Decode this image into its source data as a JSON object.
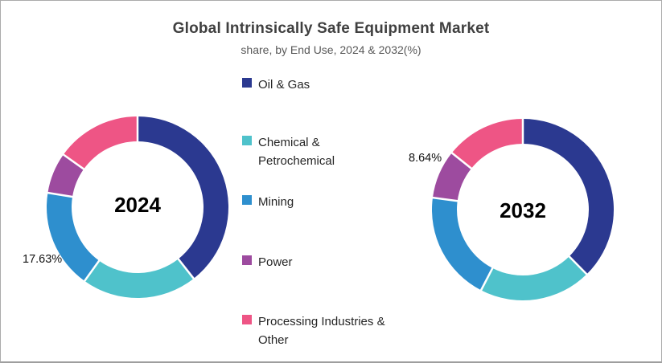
{
  "header": {
    "title": "Global Intrinsically Safe Equipment Market",
    "subtitle": "share, by End Use, 2024 & 2032(%)"
  },
  "legend": {
    "position": "center-between-charts",
    "items": [
      {
        "label": "Oil & Gas",
        "color": "#2b3990"
      },
      {
        "label": "Chemical & Petrochemical",
        "color": "#4fc2cb"
      },
      {
        "label": "Mining",
        "color": "#2e8fce"
      },
      {
        "label": "Power",
        "color": "#9d4b9f"
      },
      {
        "label": "Processing Industries & Other",
        "color": "#ee5585"
      }
    ]
  },
  "chart_data": [
    {
      "type": "pie",
      "subtype": "donut",
      "center_label": "2024",
      "categories": [
        "Oil & Gas",
        "Chemical & Petrochemical",
        "Mining",
        "Power",
        "Processing Industries & Other"
      ],
      "values": [
        39.4,
        20.5,
        17.63,
        7.3,
        15.17
      ],
      "colors": [
        "#2b3990",
        "#4fc2cb",
        "#2e8fce",
        "#9d4b9f",
        "#ee5585"
      ],
      "start_angle_deg": 0,
      "direction": "clockwise",
      "callout": {
        "text": "17.63%",
        "category": "Mining"
      }
    },
    {
      "type": "pie",
      "subtype": "donut",
      "center_label": "2032",
      "categories": [
        "Oil & Gas",
        "Chemical & Petrochemical",
        "Mining",
        "Power",
        "Processing Industries & Other"
      ],
      "values": [
        37.6,
        20.0,
        19.5,
        8.64,
        14.26
      ],
      "colors": [
        "#2b3990",
        "#4fc2cb",
        "#2e8fce",
        "#9d4b9f",
        "#ee5585"
      ],
      "start_angle_deg": 0,
      "direction": "clockwise",
      "callout": {
        "text": "8.64%",
        "category": "Power"
      }
    }
  ]
}
